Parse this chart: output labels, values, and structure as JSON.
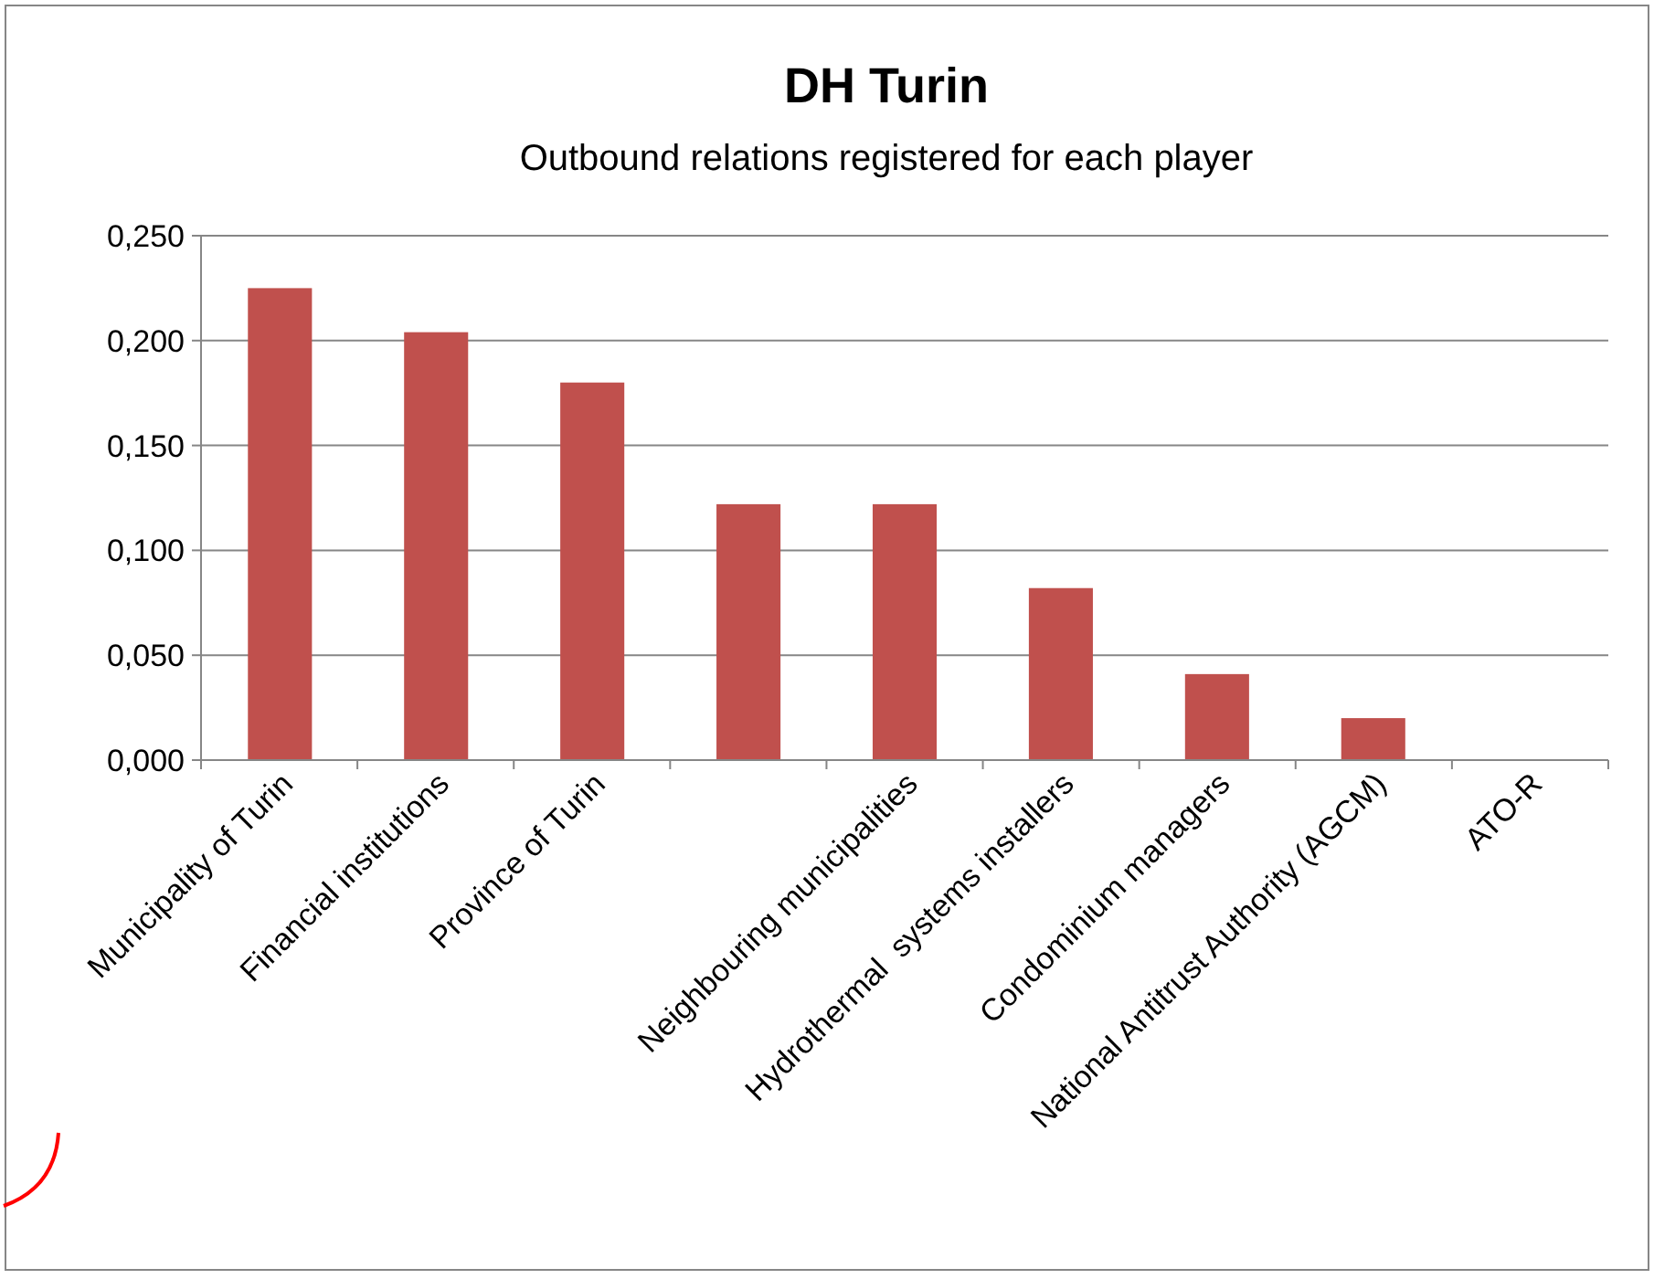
{
  "chart_data": {
    "type": "bar",
    "title": "DH Turin",
    "subtitle": "Outbound relations registered for each player",
    "categories": [
      "Municipality of Turin",
      "Financial institutions",
      "Province of Turin",
      null,
      "Neighbouring municipalities",
      "Hydrothermal  systems installers",
      "Condominium managers",
      "National Antitrust Authority (AGCM)",
      "ATO-R"
    ],
    "values": [
      0.225,
      0.204,
      0.18,
      0.122,
      0.122,
      0.082,
      0.041,
      0.02,
      0
    ],
    "color": "#c0504d",
    "ylim": [
      0,
      0.25
    ],
    "yticks": [
      {
        "value": 0,
        "label": "0,000"
      },
      {
        "value": 0.05,
        "label": "0,050"
      },
      {
        "value": 0.1,
        "label": "0,100"
      },
      {
        "value": 0.15,
        "label": "0,150"
      },
      {
        "value": 0.2,
        "label": "0,200"
      },
      {
        "value": 0.25,
        "label": "0,250"
      }
    ],
    "grid": "y"
  }
}
